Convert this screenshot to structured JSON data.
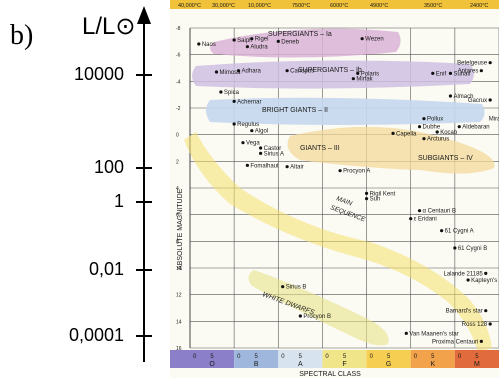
{
  "panel_letter": "b)",
  "luminosity_axis": {
    "label": "L/L⊙",
    "ticks": [
      {
        "value": 10000,
        "label": "10000"
      },
      {
        "value": 100,
        "label": "100"
      },
      {
        "value": 1,
        "label": "1"
      },
      {
        "value": 0.01,
        "label": "0,01"
      },
      {
        "value": 0.0001,
        "label": "0,0001"
      }
    ]
  },
  "hr_diagram": {
    "top_temperatures": [
      "40,000°C",
      "30,000°C",
      "10,000°C",
      "7500°C",
      "6000°C",
      "4900°C",
      "3500°C",
      "2400°C"
    ],
    "magnitude_axis_label": "ABSOLUTE MAGNITUDE",
    "magnitudes": [
      "-8",
      "-6",
      "-4",
      "-2",
      "0",
      "2",
      "4",
      "6",
      "8",
      "10",
      "12",
      "14",
      "16"
    ],
    "spectral_axis_label": "SPECTRAL CLASS",
    "spectral_classes": [
      {
        "cls": "O",
        "a": "0",
        "b": "5",
        "color": "#8a7fc8"
      },
      {
        "cls": "B",
        "a": "0",
        "b": "5",
        "color": "#9fb7dc"
      },
      {
        "cls": "A",
        "a": "0",
        "b": "5",
        "color": "#d7e3ef"
      },
      {
        "cls": "F",
        "a": "0",
        "b": "5",
        "color": "#f1e58a"
      },
      {
        "cls": "G",
        "a": "0",
        "b": "5",
        "color": "#f6cf52"
      },
      {
        "cls": "K",
        "a": "0",
        "b": "5",
        "color": "#f2a24b"
      },
      {
        "cls": "M",
        "a": "0",
        "b": "5",
        "color": "#e26b3d"
      }
    ],
    "regions": [
      {
        "label": "SUPERGIANTS – Ia"
      },
      {
        "label": "SUPERGIANTS – Ib"
      },
      {
        "label": "BRIGHT GIANTS – II"
      },
      {
        "label": "GIANTS – III"
      },
      {
        "label": "SUBGIANTS – IV"
      },
      {
        "label": "MAIN"
      },
      {
        "label": "SEQUENCE"
      },
      {
        "label": "WHITE DWARFS"
      }
    ],
    "stars": [
      {
        "name": "Naos",
        "spec": 2,
        "mag": -6.8
      },
      {
        "name": "Saiph",
        "spec": 10,
        "mag": -7.1
      },
      {
        "name": "Rigel",
        "spec": 14,
        "mag": -7.2
      },
      {
        "name": "Deneb",
        "spec": 20,
        "mag": -7.0
      },
      {
        "name": "Aludra",
        "spec": 13,
        "mag": -6.6
      },
      {
        "name": "Wezen",
        "spec": 39,
        "mag": -7.2
      },
      {
        "name": "Mimosa",
        "spec": 6,
        "mag": -4.7
      },
      {
        "name": "Adhara",
        "spec": 11,
        "mag": -4.8
      },
      {
        "name": "Canopus",
        "spec": 22,
        "mag": -4.8
      },
      {
        "name": "Polaris",
        "spec": 38,
        "mag": -4.6
      },
      {
        "name": "Mirfak",
        "spec": 37,
        "mag": -4.2
      },
      {
        "name": "Betelgeuse",
        "spec": 68,
        "mag": -5.4
      },
      {
        "name": "Enif",
        "spec": 55,
        "mag": -4.6
      },
      {
        "name": "Suhail",
        "spec": 59,
        "mag": -4.6
      },
      {
        "name": "Antares",
        "spec": 66,
        "mag": -4.8
      },
      {
        "name": "Spica",
        "spec": 7,
        "mag": -3.2
      },
      {
        "name": "Achernar",
        "spec": 10,
        "mag": -2.5
      },
      {
        "name": "Almach",
        "spec": 59,
        "mag": -2.9
      },
      {
        "name": "Gacrux",
        "spec": 68,
        "mag": -2.6
      },
      {
        "name": "Pollux",
        "spec": 53,
        "mag": -1.2
      },
      {
        "name": "Mira",
        "spec": 71,
        "mag": -1.2
      },
      {
        "name": "Regulus",
        "spec": 10,
        "mag": -0.8
      },
      {
        "name": "Algol",
        "spec": 14,
        "mag": -0.3
      },
      {
        "name": "Capella",
        "spec": 46,
        "mag": -0.1
      },
      {
        "name": "Dubhe",
        "spec": 52,
        "mag": -0.6
      },
      {
        "name": "Aldebaran",
        "spec": 61,
        "mag": -0.6
      },
      {
        "name": "Kocab",
        "spec": 56,
        "mag": -0.2
      },
      {
        "name": "Vega",
        "spec": 12,
        "mag": 0.6
      },
      {
        "name": "Castor",
        "spec": 16,
        "mag": 1.0
      },
      {
        "name": "Sirius A",
        "spec": 16,
        "mag": 1.4
      },
      {
        "name": "Arcturus",
        "spec": 53,
        "mag": 0.3
      },
      {
        "name": "Fomalhaut",
        "spec": 13,
        "mag": 2.3
      },
      {
        "name": "Altair",
        "spec": 22,
        "mag": 2.4
      },
      {
        "name": "Procyon A",
        "spec": 34,
        "mag": 2.7
      },
      {
        "name": "Rigil Kent",
        "spec": 40,
        "mag": 4.4
      },
      {
        "name": "Sun",
        "spec": 40,
        "mag": 4.8
      },
      {
        "name": "α Centauri B",
        "spec": 52,
        "mag": 5.7
      },
      {
        "name": "ε Eridani",
        "spec": 50,
        "mag": 6.3
      },
      {
        "name": "61 Cygni A",
        "spec": 57,
        "mag": 7.2
      },
      {
        "name": "61 Cygni B",
        "spec": 60,
        "mag": 8.5
      },
      {
        "name": "Lalande 21185",
        "spec": 67,
        "mag": 10.4
      },
      {
        "name": "Kapteyn's star",
        "spec": 63,
        "mag": 10.9
      },
      {
        "name": "Sirius B",
        "spec": 21,
        "mag": 11.4
      },
      {
        "name": "Barnard's star",
        "spec": 67,
        "mag": 13.2
      },
      {
        "name": "Procyon B",
        "spec": 25,
        "mag": 13.6
      },
      {
        "name": "Ross 128",
        "spec": 68,
        "mag": 14.2
      },
      {
        "name": "Van Maanen's star",
        "spec": 49,
        "mag": 14.9
      },
      {
        "name": "Proxima Centauri",
        "spec": 66,
        "mag": 15.5
      }
    ]
  }
}
